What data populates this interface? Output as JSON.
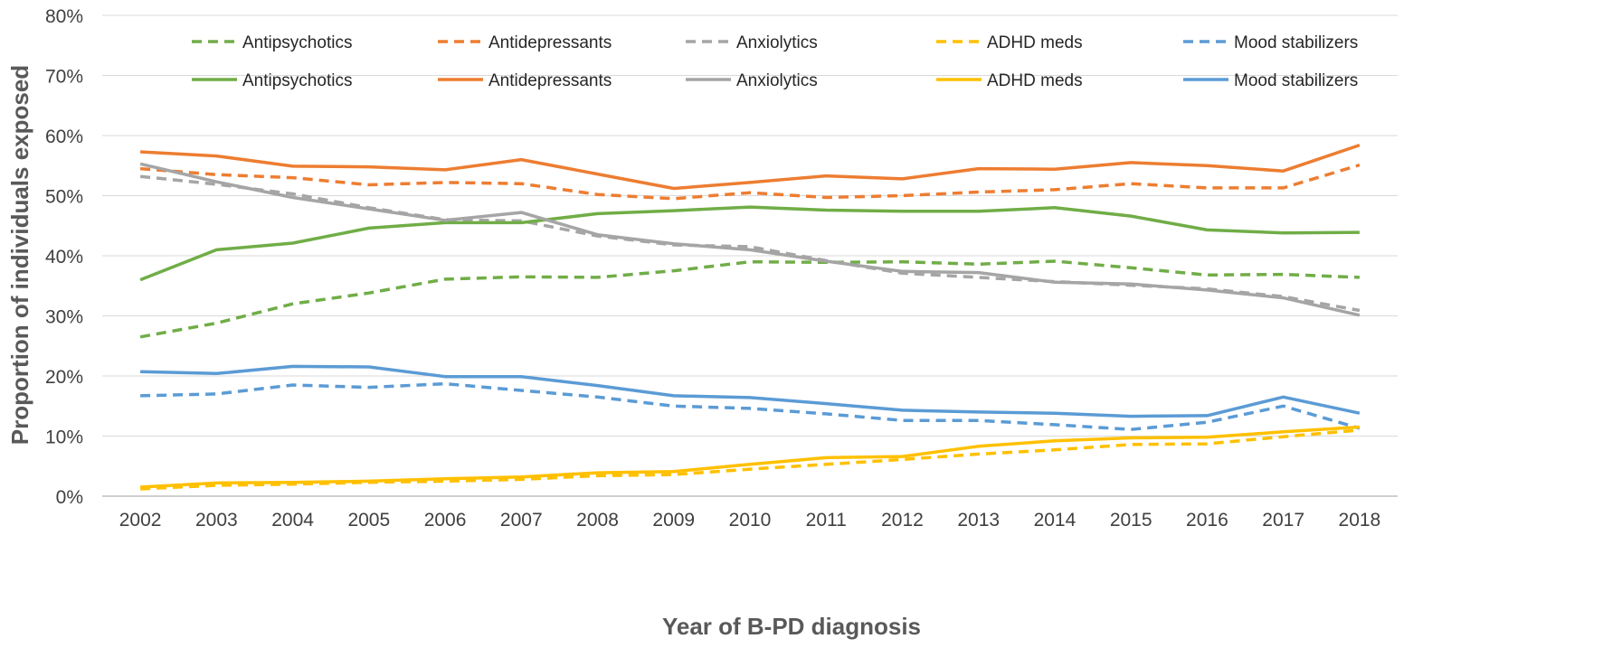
{
  "chart_data": {
    "type": "line",
    "title": "",
    "xlabel": "Year of B-PD diagnosis",
    "ylabel": "Proportion of individuals exposed",
    "ylim": [
      0,
      80
    ],
    "yticks": [
      0,
      10,
      20,
      30,
      40,
      50,
      60,
      70,
      80
    ],
    "ytick_labels": [
      "0%",
      "10%",
      "20%",
      "30%",
      "40%",
      "50%",
      "60%",
      "70%",
      "80%"
    ],
    "categories": [
      "2002",
      "2003",
      "2004",
      "2005",
      "2006",
      "2007",
      "2008",
      "2009",
      "2010",
      "2011",
      "2012",
      "2013",
      "2014",
      "2015",
      "2016",
      "2017",
      "2018"
    ],
    "grid": true,
    "legend_position": "top",
    "series": [
      {
        "name": "Antipsychotics",
        "style": "dashed",
        "color": "#70AD47",
        "values": [
          26.5,
          28.8,
          32.0,
          33.8,
          36.1,
          36.5,
          36.4,
          37.5,
          39.0,
          38.9,
          39.0,
          38.6,
          39.1,
          38.0,
          36.8,
          36.9,
          36.4
        ]
      },
      {
        "name": "Antidepressants",
        "style": "dashed",
        "color": "#ED7D31",
        "values": [
          54.5,
          53.5,
          53.0,
          51.8,
          52.2,
          52.0,
          50.2,
          49.5,
          50.5,
          49.7,
          50.0,
          50.6,
          51.0,
          52.0,
          51.3,
          51.3,
          55.1
        ]
      },
      {
        "name": "Anxiolytics",
        "style": "dashed",
        "color": "#A5A5A5",
        "values": [
          53.2,
          51.9,
          50.3,
          48.0,
          46.0,
          45.8,
          43.3,
          41.8,
          41.5,
          39.2,
          37.1,
          36.4,
          35.7,
          35.1,
          34.5,
          33.2,
          30.9
        ]
      },
      {
        "name": "ADHD meds",
        "style": "dashed",
        "color": "#FFC000",
        "values": [
          1.2,
          1.8,
          2.0,
          2.3,
          2.5,
          2.8,
          3.4,
          3.6,
          4.5,
          5.3,
          6.1,
          7.0,
          7.7,
          8.6,
          8.7,
          9.9,
          11.0
        ]
      },
      {
        "name": "Mood stabilizers",
        "style": "dashed",
        "color": "#5B9BD5",
        "values": [
          16.7,
          17.0,
          18.5,
          18.1,
          18.7,
          17.6,
          16.5,
          15.0,
          14.6,
          13.7,
          12.6,
          12.6,
          11.9,
          11.1,
          12.3,
          15.0,
          11.3
        ]
      },
      {
        "name": "Antipsychotics",
        "style": "solid",
        "color": "#70AD47",
        "values": [
          36.0,
          41.0,
          42.1,
          44.6,
          45.5,
          45.5,
          47.0,
          47.5,
          48.1,
          47.6,
          47.4,
          47.4,
          48.0,
          46.6,
          44.3,
          43.8,
          43.9
        ]
      },
      {
        "name": "Antidepressants",
        "style": "solid",
        "color": "#ED7D31",
        "values": [
          57.3,
          56.6,
          54.9,
          54.8,
          54.3,
          56.0,
          53.6,
          51.2,
          52.2,
          53.3,
          52.8,
          54.5,
          54.4,
          55.5,
          55.0,
          54.1,
          58.4
        ]
      },
      {
        "name": "Anxiolytics",
        "style": "solid",
        "color": "#A5A5A5",
        "values": [
          55.3,
          52.3,
          49.7,
          47.8,
          45.9,
          47.2,
          43.5,
          42.0,
          41.0,
          39.1,
          37.4,
          37.2,
          35.6,
          35.3,
          34.3,
          33.0,
          30.1
        ]
      },
      {
        "name": "ADHD meds",
        "style": "solid",
        "color": "#FFC000",
        "values": [
          1.5,
          2.2,
          2.3,
          2.5,
          2.9,
          3.2,
          3.9,
          4.1,
          5.3,
          6.4,
          6.6,
          8.3,
          9.2,
          9.7,
          9.8,
          10.7,
          11.5
        ]
      },
      {
        "name": "Mood stabilizers",
        "style": "solid",
        "color": "#5B9BD5",
        "values": [
          20.7,
          20.4,
          21.6,
          21.5,
          19.9,
          19.9,
          18.4,
          16.7,
          16.4,
          15.4,
          14.3,
          14.0,
          13.8,
          13.3,
          13.4,
          16.5,
          13.8
        ]
      }
    ]
  }
}
